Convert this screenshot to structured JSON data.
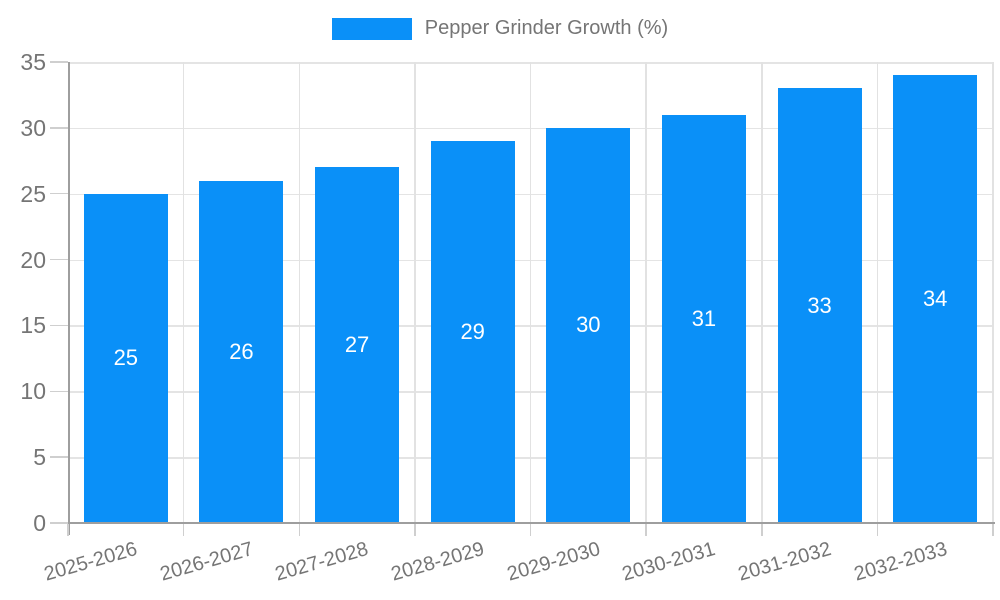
{
  "legend": {
    "label": "Pepper Grinder Growth (%)"
  },
  "colors": {
    "bar": "#0a90f8",
    "grid": "#e4e4e4",
    "axis": "#9e9e9e",
    "tick": "#cfcfcf",
    "text": "#757575",
    "bar_label_text": "#ffffff",
    "background": "#ffffff"
  },
  "chart_data": {
    "type": "bar",
    "title": "Pepper Grinder Growth (%)",
    "categories": [
      "2025-2026",
      "2026-2027",
      "2027-2028",
      "2028-2029",
      "2029-2030",
      "2030-2031",
      "2031-2032",
      "2032-2033"
    ],
    "series": [
      {
        "name": "Pepper Grinder Growth (%)",
        "values": [
          25,
          26,
          27,
          29,
          30,
          31,
          33,
          34
        ]
      }
    ],
    "data_labels": [
      "25",
      "26",
      "27",
      "29",
      "30",
      "31",
      "33",
      "34"
    ],
    "xlabel": "",
    "ylabel": "",
    "ylim": [
      0,
      35
    ],
    "y_ticks": [
      0,
      5,
      10,
      15,
      20,
      25,
      30,
      35
    ],
    "grid": true,
    "legend_position": "top-center",
    "x_label_rotation_deg": -16,
    "bar_label_position": "center"
  }
}
